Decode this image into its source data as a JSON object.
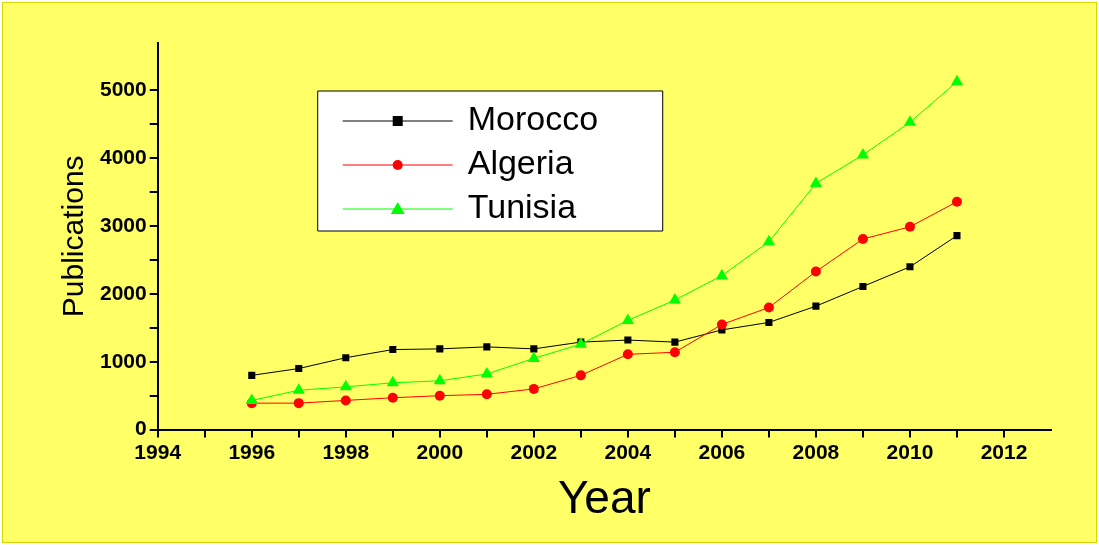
{
  "chart_data": {
    "type": "line",
    "xlabel": "Year",
    "ylabel": "Publications",
    "x": [
      1996,
      1997,
      1998,
      1999,
      2000,
      2001,
      2002,
      2003,
      2004,
      2005,
      2006,
      2007,
      2008,
      2009,
      2010,
      2011
    ],
    "series": [
      {
        "name": "Morocco",
        "color": "#000000",
        "marker": "square",
        "values": [
          800,
          900,
          1060,
          1180,
          1190,
          1220,
          1190,
          1290,
          1320,
          1290,
          1470,
          1580,
          1820,
          2110,
          2400,
          2860
        ]
      },
      {
        "name": "Algeria",
        "color": "#ff0000",
        "marker": "circle",
        "values": [
          390,
          390,
          430,
          470,
          500,
          520,
          600,
          800,
          1110,
          1140,
          1550,
          1800,
          2330,
          2810,
          2990,
          3360
        ]
      },
      {
        "name": "Tunisia",
        "color": "#00ff00",
        "marker": "triangle",
        "values": [
          430,
          580,
          630,
          690,
          720,
          820,
          1050,
          1260,
          1610,
          1910,
          2270,
          2770,
          3630,
          4050,
          4530,
          5130
        ]
      }
    ],
    "xlim": [
      1994,
      2013
    ],
    "xticks": [
      1994,
      {
        "value": 1995,
        "label": null
      },
      1996,
      {
        "value": 1997,
        "label": null
      },
      1998,
      {
        "value": 1999,
        "label": null
      },
      2000,
      {
        "value": 2001,
        "label": null
      },
      2002,
      {
        "value": 2003,
        "label": null
      },
      2004,
      {
        "value": 2005,
        "label": null
      },
      2006,
      {
        "value": 2007,
        "label": null
      },
      2008,
      {
        "value": 2009,
        "label": null
      },
      2010,
      {
        "value": 2011,
        "label": null
      },
      2012
    ],
    "ylim": [
      0,
      5700
    ],
    "yticks": [
      0,
      {
        "value": 500,
        "label": null
      },
      1000,
      {
        "value": 1500,
        "label": null
      },
      2000,
      {
        "value": 2500,
        "label": null
      },
      3000,
      {
        "value": 3500,
        "label": null
      },
      4000,
      {
        "value": 4500,
        "label": null
      },
      5000
    ],
    "legend": "top left",
    "grid": false
  }
}
